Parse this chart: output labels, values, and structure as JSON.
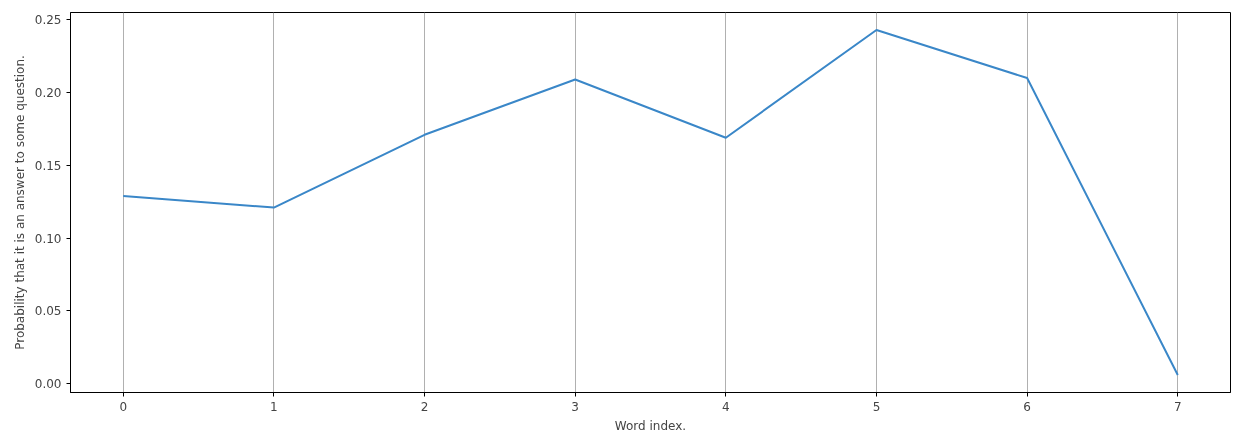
{
  "chart_data": {
    "type": "line",
    "xlabel": "Word index.",
    "ylabel": "Probability that it is an answer to some question.",
    "x": [
      0,
      1,
      2,
      3,
      4,
      5,
      6,
      7
    ],
    "series": [
      {
        "color": "#3a87c8",
        "values": [
          0.129,
          0.121,
          0.171,
          0.209,
          0.169,
          0.243,
          0.21,
          0.006
        ]
      }
    ],
    "xlim": [
      -0.35,
      7.35
    ],
    "ylim": [
      -0.006,
      0.255
    ],
    "xticks": [
      0,
      1,
      2,
      3,
      4,
      5,
      6,
      7
    ],
    "yticks": [
      {
        "value": 0,
        "label": "0.00"
      },
      {
        "value": 0.05,
        "label": "0.05"
      },
      {
        "value": 0.1,
        "label": "0.10"
      },
      {
        "value": 0.15,
        "label": "0.15"
      },
      {
        "value": 0.2,
        "label": "0.20"
      },
      {
        "value": 0.25,
        "label": "0.25"
      }
    ],
    "grid": "x",
    "marker": "none",
    "line_style": "solid"
  }
}
